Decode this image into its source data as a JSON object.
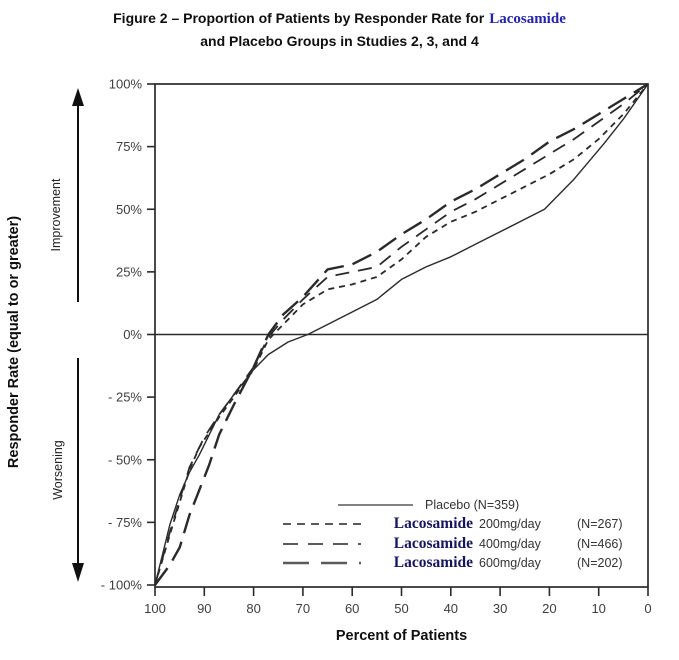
{
  "figure": {
    "title_part1": "Figure 2 – Proportion of Patients by Responder Rate for",
    "title_drug": "Lacosamide",
    "title_line2": "and Placebo Groups in Studies 2, 3, and 4"
  },
  "colors": {
    "curve": "#2a2a2a",
    "axis": "#2a2a2a",
    "legend_sample": "#5a5a5a",
    "drug_title_blue": "#2323ad",
    "drug_legend_blue": "#16165f",
    "tick_text": "#3d3d3d"
  },
  "chart_data": {
    "type": "line",
    "title": "Figure 2 – Proportion of Patients by Responder Rate for Lacosamide and Placebo Groups in Studies 2, 3, and 4",
    "xlabel": "Percent of Patients",
    "ylabel": "Responder Rate (equal to or greater)",
    "improvement_label": "Improvement",
    "worsening_label": "Worsening",
    "x_reversed": true,
    "xlim": [
      100,
      0
    ],
    "ylim": [
      -100,
      100
    ],
    "grid": false,
    "zero_line": true,
    "legend_position": "inside lower right",
    "x_ticks": [
      100,
      90,
      80,
      70,
      60,
      50,
      40,
      30,
      20,
      10,
      0
    ],
    "y_ticks": [
      {
        "v": 100,
        "label": "100%"
      },
      {
        "v": 75,
        "label": "75%"
      },
      {
        "v": 50,
        "label": "50%"
      },
      {
        "v": 25,
        "label": "25%"
      },
      {
        "v": 0,
        "label": "0%"
      },
      {
        "v": -25,
        "label": "- 25%"
      },
      {
        "v": -50,
        "label": "- 50%"
      },
      {
        "v": -75,
        "label": "- 75%"
      },
      {
        "v": -100,
        "label": "- 100%"
      }
    ],
    "series": [
      {
        "name": "Placebo",
        "n": 359,
        "style": "solid",
        "points": [
          [
            100,
            -100
          ],
          [
            97,
            -76
          ],
          [
            95,
            -64
          ],
          [
            93,
            -55
          ],
          [
            91,
            -48
          ],
          [
            90,
            -44
          ],
          [
            87,
            -32
          ],
          [
            84,
            -24
          ],
          [
            80,
            -14
          ],
          [
            77,
            -8
          ],
          [
            73,
            -3
          ],
          [
            69,
            0
          ],
          [
            64,
            5
          ],
          [
            60,
            9
          ],
          [
            55,
            14
          ],
          [
            50,
            22
          ],
          [
            45,
            27
          ],
          [
            40,
            31
          ],
          [
            35,
            36
          ],
          [
            32,
            39
          ],
          [
            25,
            46
          ],
          [
            21,
            50
          ],
          [
            15,
            62
          ],
          [
            9,
            76
          ],
          [
            5,
            86
          ],
          [
            0,
            100
          ]
        ]
      },
      {
        "name": "Lacosamide 200mg/day",
        "n": 267,
        "style": "dash-small",
        "points": [
          [
            100,
            -100
          ],
          [
            97,
            -80
          ],
          [
            95,
            -67
          ],
          [
            93,
            -54
          ],
          [
            91,
            -45
          ],
          [
            87,
            -33
          ],
          [
            84,
            -25
          ],
          [
            80,
            -14
          ],
          [
            77,
            -2
          ],
          [
            74,
            4
          ],
          [
            70,
            12
          ],
          [
            65,
            18
          ],
          [
            60,
            20
          ],
          [
            55,
            23
          ],
          [
            50,
            30
          ],
          [
            45,
            39
          ],
          [
            40,
            45
          ],
          [
            35,
            49
          ],
          [
            30,
            54
          ],
          [
            25,
            59
          ],
          [
            20,
            64
          ],
          [
            15,
            70
          ],
          [
            10,
            78
          ],
          [
            5,
            88
          ],
          [
            0,
            100
          ]
        ]
      },
      {
        "name": "Lacosamide 400mg/day",
        "n": 466,
        "style": "dash-medium",
        "points": [
          [
            100,
            -100
          ],
          [
            97,
            -79
          ],
          [
            95,
            -66
          ],
          [
            93,
            -53
          ],
          [
            90,
            -41
          ],
          [
            87,
            -32
          ],
          [
            84,
            -24
          ],
          [
            80,
            -13
          ],
          [
            77,
            -1
          ],
          [
            74,
            6
          ],
          [
            70,
            14
          ],
          [
            65,
            23
          ],
          [
            60,
            25
          ],
          [
            55,
            27
          ],
          [
            50,
            35
          ],
          [
            45,
            42
          ],
          [
            40,
            49
          ],
          [
            35,
            54
          ],
          [
            30,
            60
          ],
          [
            25,
            66
          ],
          [
            20,
            72
          ],
          [
            15,
            78
          ],
          [
            10,
            85
          ],
          [
            5,
            92
          ],
          [
            0,
            100
          ]
        ]
      },
      {
        "name": "Lacosamide 600mg/day",
        "n": 202,
        "style": "dash-long",
        "points": [
          [
            100,
            -100
          ],
          [
            97,
            -92
          ],
          [
            95,
            -85
          ],
          [
            93,
            -72
          ],
          [
            91,
            -62
          ],
          [
            89,
            -52
          ],
          [
            87,
            -40
          ],
          [
            86,
            -36
          ],
          [
            84,
            -28
          ],
          [
            80,
            -13
          ],
          [
            77,
            0
          ],
          [
            74,
            8
          ],
          [
            70,
            15
          ],
          [
            65,
            26
          ],
          [
            60,
            28
          ],
          [
            55,
            33
          ],
          [
            50,
            40
          ],
          [
            45,
            46
          ],
          [
            40,
            53
          ],
          [
            35,
            58
          ],
          [
            30,
            64
          ],
          [
            25,
            70
          ],
          [
            20,
            77
          ],
          [
            15,
            82
          ],
          [
            10,
            88
          ],
          [
            5,
            94
          ],
          [
            0,
            100
          ]
        ]
      }
    ]
  },
  "legend": {
    "items": [
      {
        "label": "Placebo (N=359)",
        "style": "solid"
      },
      {
        "drug": "Lacosamide",
        "dose": "200mg/day",
        "n": "(N=267)",
        "style": "dash-small"
      },
      {
        "drug": "Lacosamide",
        "dose": "400mg/day",
        "n": "(N=466)",
        "style": "dash-medium"
      },
      {
        "drug": "Lacosamide",
        "dose": "600mg/day",
        "n": "(N=202)",
        "style": "dash-long"
      }
    ]
  }
}
